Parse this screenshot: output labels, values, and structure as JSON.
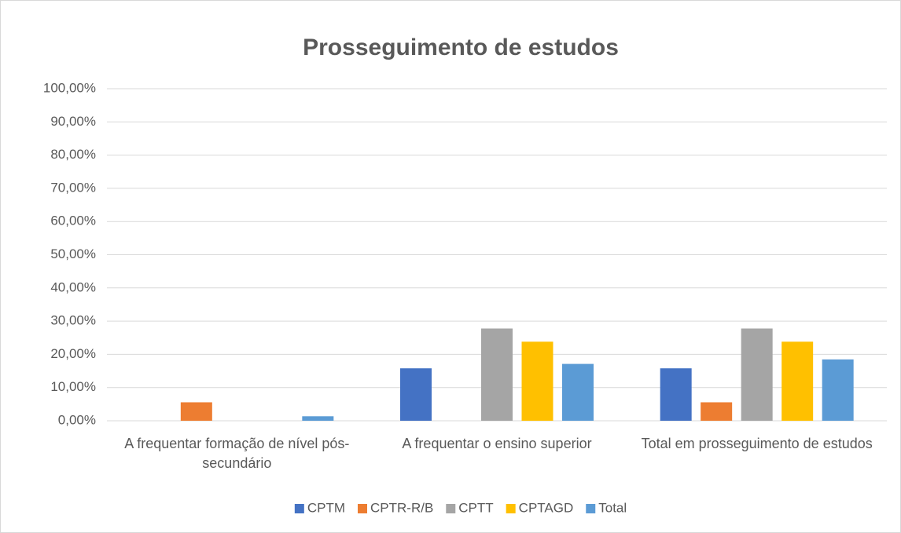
{
  "chart_data": {
    "type": "bar",
    "title": "Prosseguimento de estudos",
    "categories": [
      "A frequentar formação de nível pós-secundário",
      "A frequentar o ensino superior",
      "Total em prosseguimento de estudos"
    ],
    "series": [
      {
        "name": "CPTM",
        "color": "#4472c4",
        "values": [
          0,
          15.79,
          15.79
        ]
      },
      {
        "name": "CPTR-R/B",
        "color": "#ed7d31",
        "values": [
          5.56,
          0,
          5.56
        ]
      },
      {
        "name": "CPTT",
        "color": "#a5a5a5",
        "values": [
          0,
          27.78,
          27.78
        ]
      },
      {
        "name": "CPTAGD",
        "color": "#ffc000",
        "values": [
          0,
          23.81,
          23.81
        ]
      },
      {
        "name": "Total",
        "color": "#5b9bd5",
        "values": [
          1.35,
          17.12,
          18.47
        ]
      }
    ],
    "ylim": [
      0,
      100
    ],
    "yticks": [
      {
        "value": 0,
        "label": "0,00%"
      },
      {
        "value": 10,
        "label": "10,00%"
      },
      {
        "value": 20,
        "label": "20,00%"
      },
      {
        "value": 30,
        "label": "30,00%"
      },
      {
        "value": 40,
        "label": "40,00%"
      },
      {
        "value": 50,
        "label": "50,00%"
      },
      {
        "value": 60,
        "label": "60,00%"
      },
      {
        "value": 70,
        "label": "70,00%"
      },
      {
        "value": 80,
        "label": "80,00%"
      },
      {
        "value": 90,
        "label": "90,00%"
      },
      {
        "value": 100,
        "label": "100,00%"
      }
    ],
    "grid": true,
    "legend": "bottom"
  }
}
